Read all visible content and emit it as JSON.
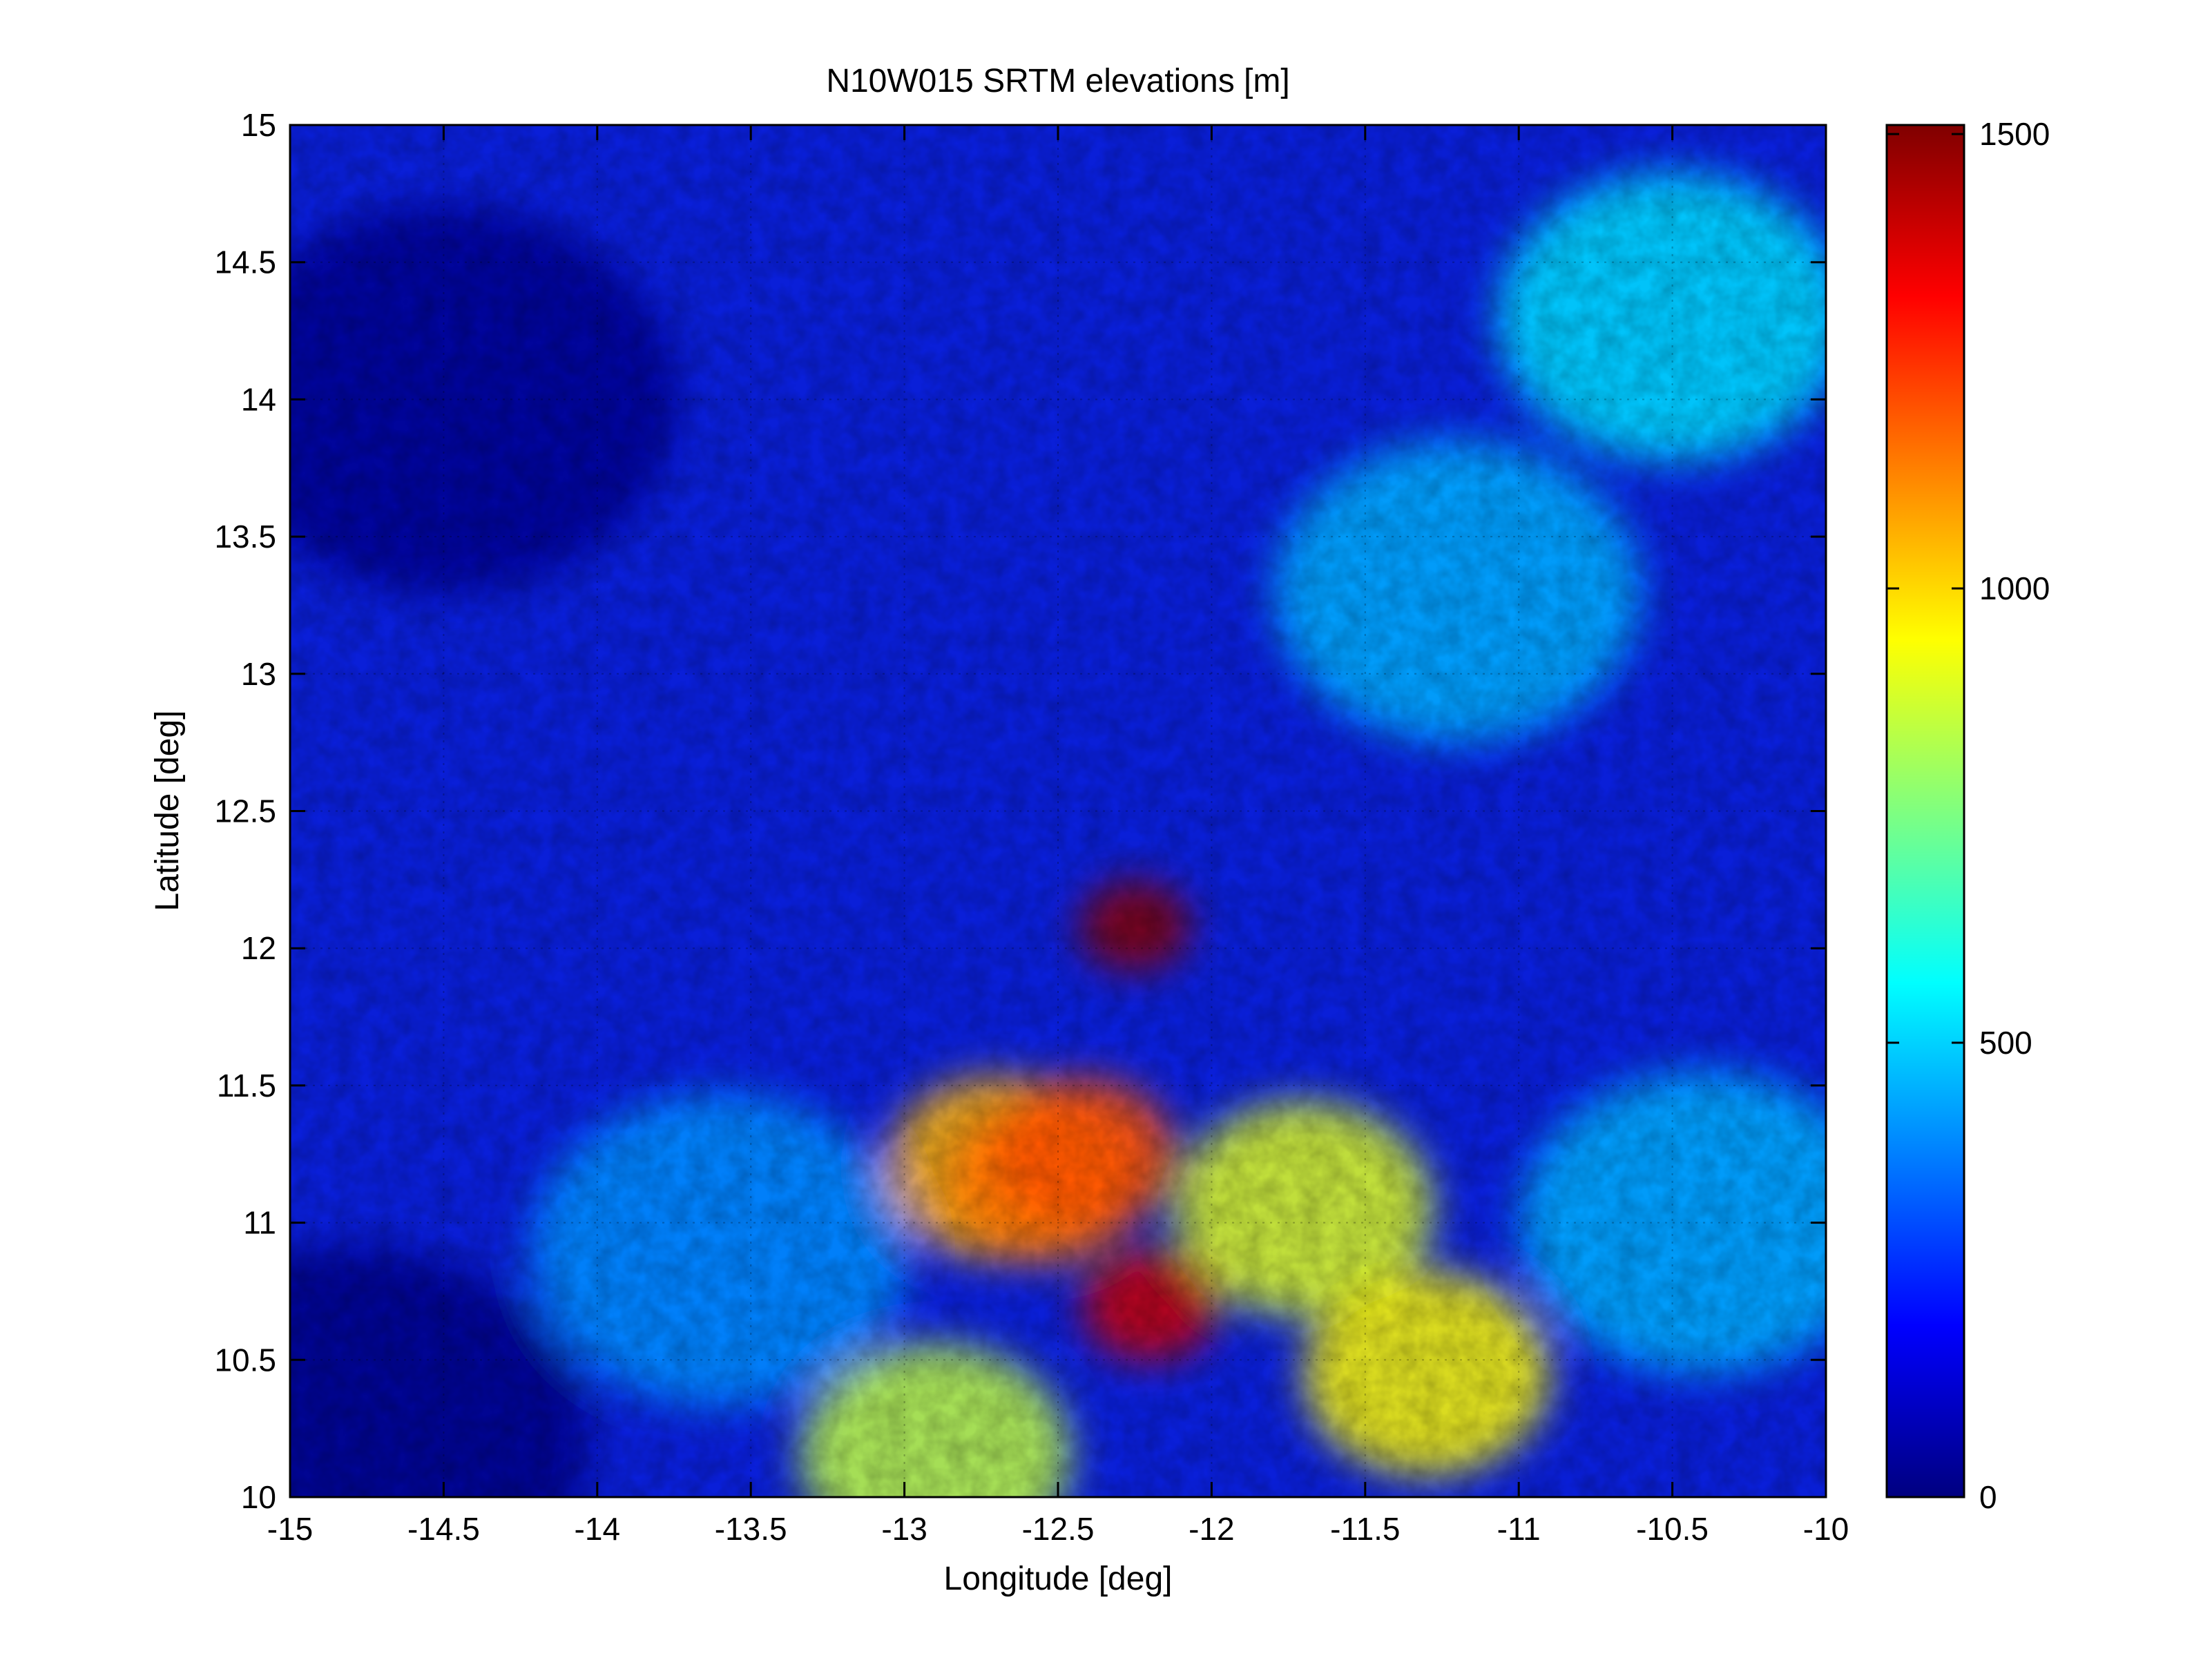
{
  "chart_data": {
    "type": "heatmap",
    "title": "N10W015 SRTM elevations [m]",
    "xlabel": "Longitude [deg]",
    "ylabel": "Latitude [deg]",
    "xlim": [
      -15,
      -10
    ],
    "ylim": [
      10,
      15
    ],
    "xticks": [
      -15,
      -14.5,
      -14,
      -13.5,
      -13,
      -12.5,
      -12,
      -11.5,
      -11,
      -10.5,
      -10
    ],
    "xtick_labels": [
      "-15",
      "-14.5",
      "-14",
      "-13.5",
      "-13",
      "-12.5",
      "-12",
      "-11.5",
      "-11",
      "-10.5",
      "-10"
    ],
    "yticks": [
      10,
      10.5,
      11,
      11.5,
      12,
      12.5,
      13,
      13.5,
      14,
      14.5,
      15
    ],
    "ytick_labels": [
      "10",
      "10.5",
      "11",
      "11.5",
      "12",
      "12.5",
      "13",
      "13.5",
      "14",
      "14.5",
      "15"
    ],
    "grid": true,
    "colormap": "jet",
    "colorbar": {
      "range": [
        0,
        1510
      ],
      "ticks": [
        0,
        500,
        1000,
        1500
      ],
      "tick_labels": [
        "0",
        "500",
        "1000",
        "1500"
      ],
      "position": "right"
    },
    "features": [
      {
        "lon": -12.25,
        "lat": 12.08,
        "elevation": 1500
      },
      {
        "lon": -12.42,
        "lat": 11.25,
        "elevation": 1200
      },
      {
        "lon": -12.55,
        "lat": 11.15,
        "elevation": 1150
      },
      {
        "lon": -12.2,
        "lat": 10.7,
        "elevation": 1400
      },
      {
        "lon": -12.7,
        "lat": 11.2,
        "elevation": 1050
      },
      {
        "lon": -11.7,
        "lat": 11.05,
        "elevation": 900
      },
      {
        "lon": -11.3,
        "lat": 10.45,
        "elevation": 950
      },
      {
        "lon": -12.9,
        "lat": 10.15,
        "elevation": 850
      },
      {
        "lon": -10.5,
        "lat": 14.3,
        "elevation": 520
      },
      {
        "lon": -11.2,
        "lat": 13.3,
        "elevation": 450
      },
      {
        "lon": -10.4,
        "lat": 11.0,
        "elevation": 450
      },
      {
        "lon": -13.6,
        "lat": 10.9,
        "elevation": 400
      },
      {
        "lon": -14.8,
        "lat": 10.2,
        "elevation": 10
      },
      {
        "lon": -14.5,
        "lat": 14.0,
        "elevation": 25
      }
    ]
  }
}
